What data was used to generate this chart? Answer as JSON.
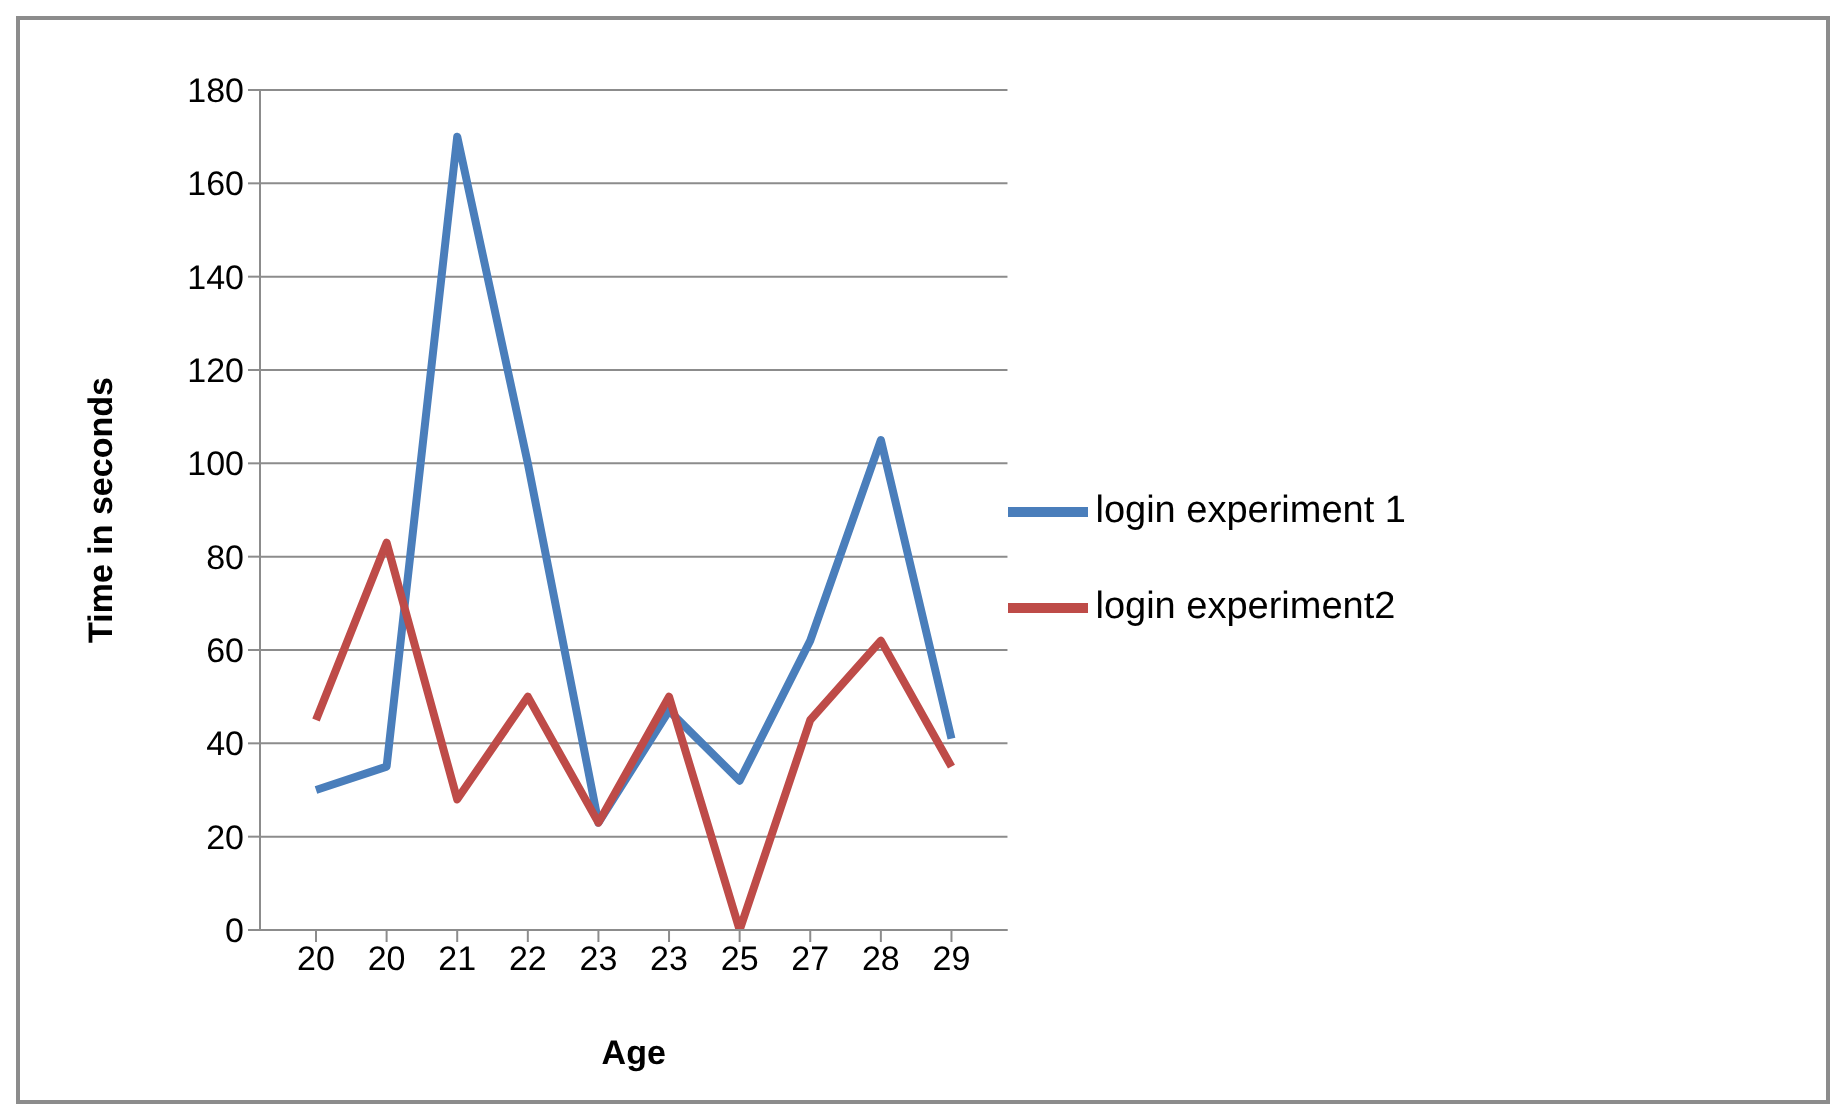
{
  "chart_data": {
    "type": "line",
    "xlabel": "Age",
    "ylabel": "Time in seconds",
    "categories": [
      "20",
      "20",
      "21",
      "22",
      "23",
      "23",
      "25",
      "27",
      "28",
      "29"
    ],
    "series": [
      {
        "name": "login experiment 1",
        "color": "#4a7ebb",
        "values": [
          30,
          35,
          170,
          100,
          23,
          47,
          32,
          62,
          105,
          41
        ]
      },
      {
        "name": "login experiment2",
        "color": "#be4b48",
        "values": [
          45,
          83,
          28,
          50,
          23,
          50,
          0,
          45,
          62,
          35
        ]
      }
    ],
    "ylim": [
      0,
      180
    ],
    "yticks": [
      0,
      20,
      40,
      60,
      80,
      100,
      120,
      140,
      160,
      180
    ],
    "grid": "y",
    "legend": "right",
    "marker": "none",
    "line_style": "solid"
  }
}
